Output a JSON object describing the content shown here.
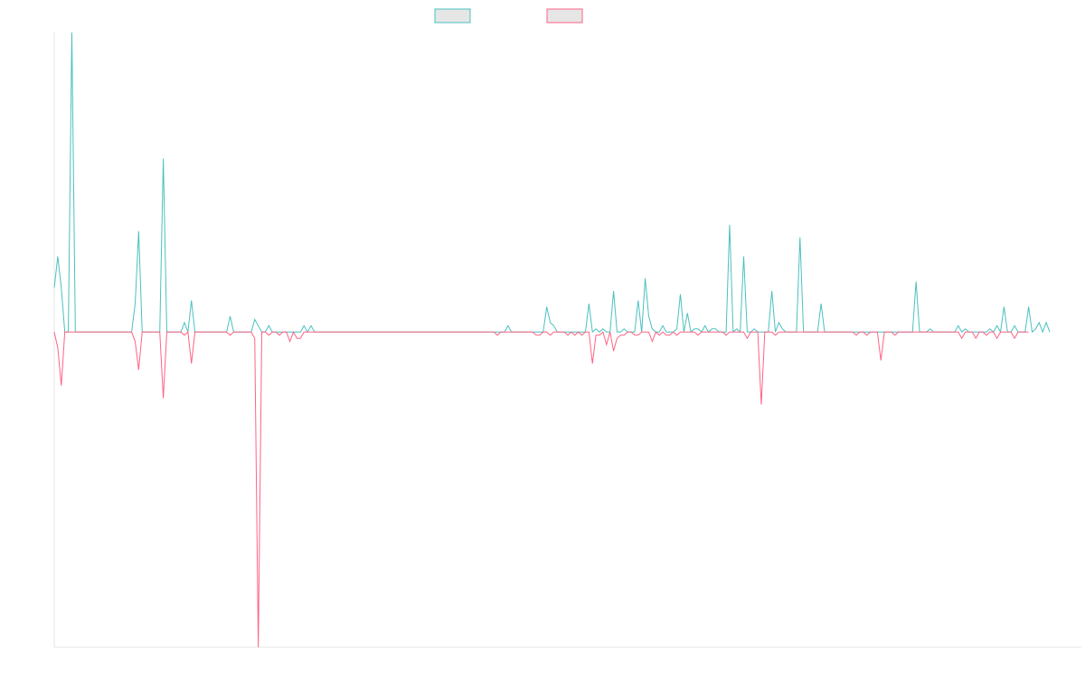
{
  "chart_data": {
    "type": "line",
    "title": "",
    "xlabel": "",
    "ylabel": "",
    "xlim": [
      0,
      292
    ],
    "ylim": [
      -100,
      95
    ],
    "grid": false,
    "legend": {
      "placement": "top-center",
      "entries": [
        "",
        ""
      ]
    },
    "colors": {
      "series_a": "#4bc0c0",
      "series_b": "#ff6384",
      "legend_fill": "#e6e6e6",
      "axis": "#e6e6e6"
    },
    "series": [
      {
        "values": [
          14,
          24,
          14,
          0,
          0,
          95,
          0,
          0,
          0,
          0,
          0,
          0,
          0,
          0,
          0,
          0,
          0,
          0,
          0,
          0,
          0,
          0,
          0,
          9,
          32,
          0,
          0,
          0,
          0,
          0,
          0,
          55,
          0,
          0,
          0,
          0,
          0,
          3,
          0,
          10,
          0,
          0,
          0,
          0,
          0,
          0,
          0,
          0,
          0,
          0,
          5,
          0,
          0,
          0,
          0,
          0,
          0,
          4,
          2,
          0,
          0,
          2,
          0,
          0,
          0,
          0,
          0,
          0,
          0,
          0,
          0,
          2,
          0,
          2,
          0,
          0,
          0,
          0,
          0,
          0,
          0,
          0,
          0,
          0,
          0,
          0,
          0,
          0,
          0,
          0,
          0,
          0,
          0,
          0,
          0,
          0,
          0,
          0,
          0,
          0,
          0,
          0,
          0,
          0,
          0,
          0,
          0,
          0,
          0,
          0,
          0,
          0,
          0,
          0,
          0,
          0,
          0,
          0,
          0,
          0,
          0,
          0,
          0,
          0,
          0,
          0,
          0,
          0,
          0,
          2,
          0,
          0,
          0,
          0,
          0,
          0,
          0,
          0,
          0,
          0,
          8,
          3,
          2,
          0,
          0,
          0,
          0,
          0,
          0,
          0,
          0,
          0,
          9,
          0,
          1,
          0,
          1,
          0,
          0,
          13,
          0,
          0,
          1,
          0,
          0,
          0,
          10,
          0,
          17,
          5,
          1,
          0,
          0,
          2,
          0,
          0,
          0,
          1,
          12,
          0,
          6,
          0,
          1,
          1,
          0,
          2,
          0,
          1,
          1,
          0,
          0,
          0,
          34,
          0,
          1,
          0,
          24,
          0,
          0,
          1,
          0,
          0,
          0,
          0,
          13,
          0,
          3,
          1,
          0,
          0,
          0,
          0,
          30,
          0,
          0,
          0,
          0,
          0,
          9,
          0,
          0,
          0,
          0,
          0,
          0,
          0,
          0,
          0,
          0,
          0,
          0,
          0,
          0,
          0,
          0,
          0,
          0,
          0,
          0,
          0,
          0,
          0,
          0,
          0,
          0,
          16,
          0,
          0,
          0,
          1,
          0,
          0,
          0,
          0,
          0,
          0,
          0,
          2,
          0,
          1,
          0,
          0,
          0,
          0,
          0,
          0,
          1,
          0,
          2,
          0,
          8,
          0,
          0,
          2,
          0,
          0,
          0,
          8,
          0,
          1,
          3,
          0,
          3,
          0
        ],
        "color": "#4bc0c0"
      },
      {
        "values": [
          0,
          -5,
          -17,
          0,
          0,
          0,
          0,
          0,
          0,
          0,
          0,
          0,
          0,
          0,
          0,
          0,
          0,
          0,
          0,
          0,
          0,
          0,
          0,
          -3,
          -12,
          0,
          0,
          0,
          0,
          0,
          0,
          -21,
          0,
          0,
          0,
          0,
          0,
          -1,
          0,
          -10,
          0,
          0,
          0,
          0,
          0,
          0,
          0,
          0,
          0,
          0,
          -1,
          0,
          0,
          0,
          0,
          0,
          0,
          -2,
          -100,
          0,
          0,
          -1,
          0,
          0,
          -1,
          0,
          0,
          -3,
          0,
          -2,
          -2,
          0,
          0,
          0,
          0,
          0,
          0,
          0,
          0,
          0,
          0,
          0,
          0,
          0,
          0,
          0,
          0,
          0,
          0,
          0,
          0,
          0,
          0,
          0,
          0,
          0,
          0,
          0,
          0,
          0,
          0,
          0,
          0,
          0,
          0,
          0,
          0,
          0,
          0,
          0,
          0,
          0,
          0,
          0,
          0,
          0,
          0,
          0,
          0,
          0,
          0,
          0,
          0,
          0,
          0,
          0,
          -1,
          0,
          0,
          0,
          0,
          0,
          0,
          0,
          0,
          0,
          0,
          -1,
          -1,
          0,
          0,
          -1,
          0,
          0,
          0,
          0,
          -1,
          0,
          -1,
          0,
          -1,
          0,
          0,
          -10,
          -1,
          -1,
          0,
          -4,
          0,
          -6,
          -2,
          -1,
          -1,
          0,
          0,
          -1,
          -1,
          0,
          0,
          0,
          -3,
          0,
          -1,
          0,
          -1,
          -1,
          0,
          -1,
          0,
          0,
          0,
          0,
          0,
          -1,
          0,
          0,
          0,
          0,
          0,
          0,
          0,
          -1,
          0,
          0,
          0,
          0,
          0,
          -2,
          0,
          0,
          0,
          -23,
          0,
          0,
          0,
          -1,
          0,
          0,
          0,
          0,
          0,
          0,
          0,
          0,
          0,
          0,
          0,
          0,
          0,
          0,
          0,
          0,
          0,
          0,
          0,
          0,
          0,
          0,
          -1,
          0,
          0,
          -1,
          0,
          0,
          0,
          -9,
          0,
          0,
          0,
          -1,
          0,
          0,
          0,
          0,
          0,
          0,
          0,
          0,
          0,
          0,
          0,
          0,
          0,
          0,
          0,
          0,
          0,
          0,
          -2,
          0,
          0,
          0,
          -2,
          0,
          0,
          -1,
          0,
          0,
          -2,
          0,
          0,
          0,
          0,
          -2,
          0,
          0,
          0,
          0
        ],
        "color": "#ff6384"
      }
    ]
  }
}
